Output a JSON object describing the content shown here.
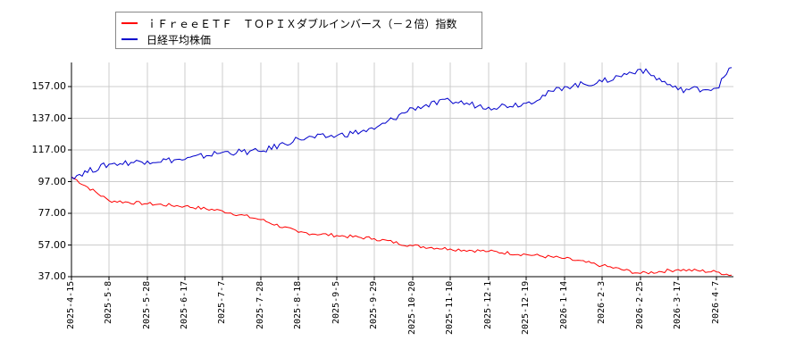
{
  "chart_data": {
    "type": "line",
    "title": "",
    "xlabel": "",
    "ylabel": "",
    "ylim": [
      37.0,
      171.0
    ],
    "grid": true,
    "legend_position": "top-left",
    "y_ticks": [
      "37.00",
      "57.00",
      "77.00",
      "97.00",
      "117.00",
      "137.00",
      "157.00"
    ],
    "x_ticks": [
      "2025-4-15",
      "2025-5-8",
      "2025-5-28",
      "2025-6-17",
      "2025-7-7",
      "2025-7-28",
      "2025-8-18",
      "2025-9-5",
      "2025-9-29",
      "2025-10-20",
      "2025-11-10",
      "2025-12-1",
      "2025-12-19",
      "2026-1-14",
      "2026-2-3",
      "2026-2-25",
      "2026-3-17",
      "2026-4-7"
    ],
    "x": [
      "2025-4-15",
      "2025-5-8",
      "2025-5-28",
      "2025-6-17",
      "2025-7-7",
      "2025-7-28",
      "2025-8-18",
      "2025-9-5",
      "2025-9-29",
      "2025-10-20",
      "2025-11-10",
      "2025-12-1",
      "2025-12-19",
      "2026-1-14",
      "2026-2-3",
      "2026-2-25",
      "2026-3-17",
      "2026-4-7",
      "2026-4-17"
    ],
    "series": [
      {
        "name": "ｉＦｒｅｅＥＴＦ　ＴＯＰＩＸダブルインバース（－２倍）指数",
        "color": "#ff0000",
        "values": [
          100.0,
          85.0,
          83.0,
          81.5,
          78.5,
          73.0,
          65.0,
          63.0,
          61.0,
          56.5,
          54.5,
          53.0,
          51.0,
          48.5,
          44.0,
          39.0,
          41.5,
          40.0,
          38.0
        ]
      },
      {
        "name": "日経平均株価",
        "color": "#0000cc",
        "values": [
          100.0,
          108.0,
          110.0,
          111.0,
          115.5,
          116.0,
          124.0,
          126.0,
          130.0,
          143.5,
          148.0,
          144.0,
          146.5,
          157.0,
          160.0,
          168.0,
          155.0,
          156.0,
          169.0
        ]
      }
    ]
  },
  "legend": {
    "items": [
      {
        "label": "ｉＦｒｅｅＥＴＦ　ＴＯＰＩＸダブルインバース（－２倍）指数",
        "color": "#ff0000"
      },
      {
        "label": "日経平均株価",
        "color": "#0000cc"
      }
    ]
  }
}
